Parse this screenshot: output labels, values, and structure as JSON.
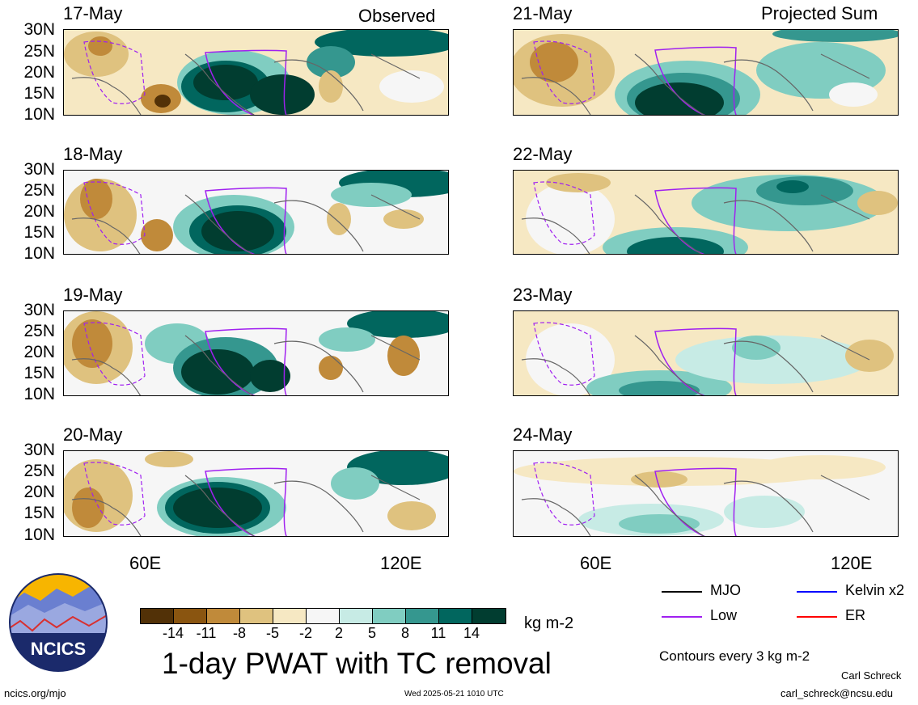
{
  "headers": {
    "left": "Observed",
    "right": "Projected Sum"
  },
  "panels": {
    "observed": [
      "17-May",
      "18-May",
      "19-May",
      "20-May"
    ],
    "projected": [
      "21-May",
      "22-May",
      "23-May",
      "24-May"
    ]
  },
  "lat_labels": [
    "30N",
    "25N",
    "20N",
    "15N",
    "10N"
  ],
  "lon_labels": [
    "60E",
    "120E"
  ],
  "colorbar": {
    "colors": [
      "#523107",
      "#8a5510",
      "#c08a3a",
      "#dfc27f",
      "#f6e8c3",
      "#f6f6f6",
      "#c7ebe5",
      "#80cdc1",
      "#35978f",
      "#01665e",
      "#013d30"
    ],
    "ticks": [
      "-14",
      "-11",
      "-8",
      "-5",
      "-2",
      "2",
      "5",
      "8",
      "11",
      "14"
    ],
    "unit": "kg m-2"
  },
  "title": "1-day PWAT with TC removal",
  "legend": {
    "items": [
      {
        "label": "MJO",
        "color": "#000000"
      },
      {
        "label": "Kelvin x2",
        "color": "#0000ff"
      },
      {
        "label": "Low",
        "color": "#a020f0"
      },
      {
        "label": "ER",
        "color": "#ff0000"
      }
    ],
    "contours": "Contours every 3 kg m-2"
  },
  "credits": {
    "url": "ncics.org/mjo",
    "timestamp": "Wed 2025-05-21 1010 UTC",
    "author": "Carl Schreck",
    "email": "carl_schreck@ncsu.edu"
  },
  "logo": {
    "text": "NCICS"
  }
}
